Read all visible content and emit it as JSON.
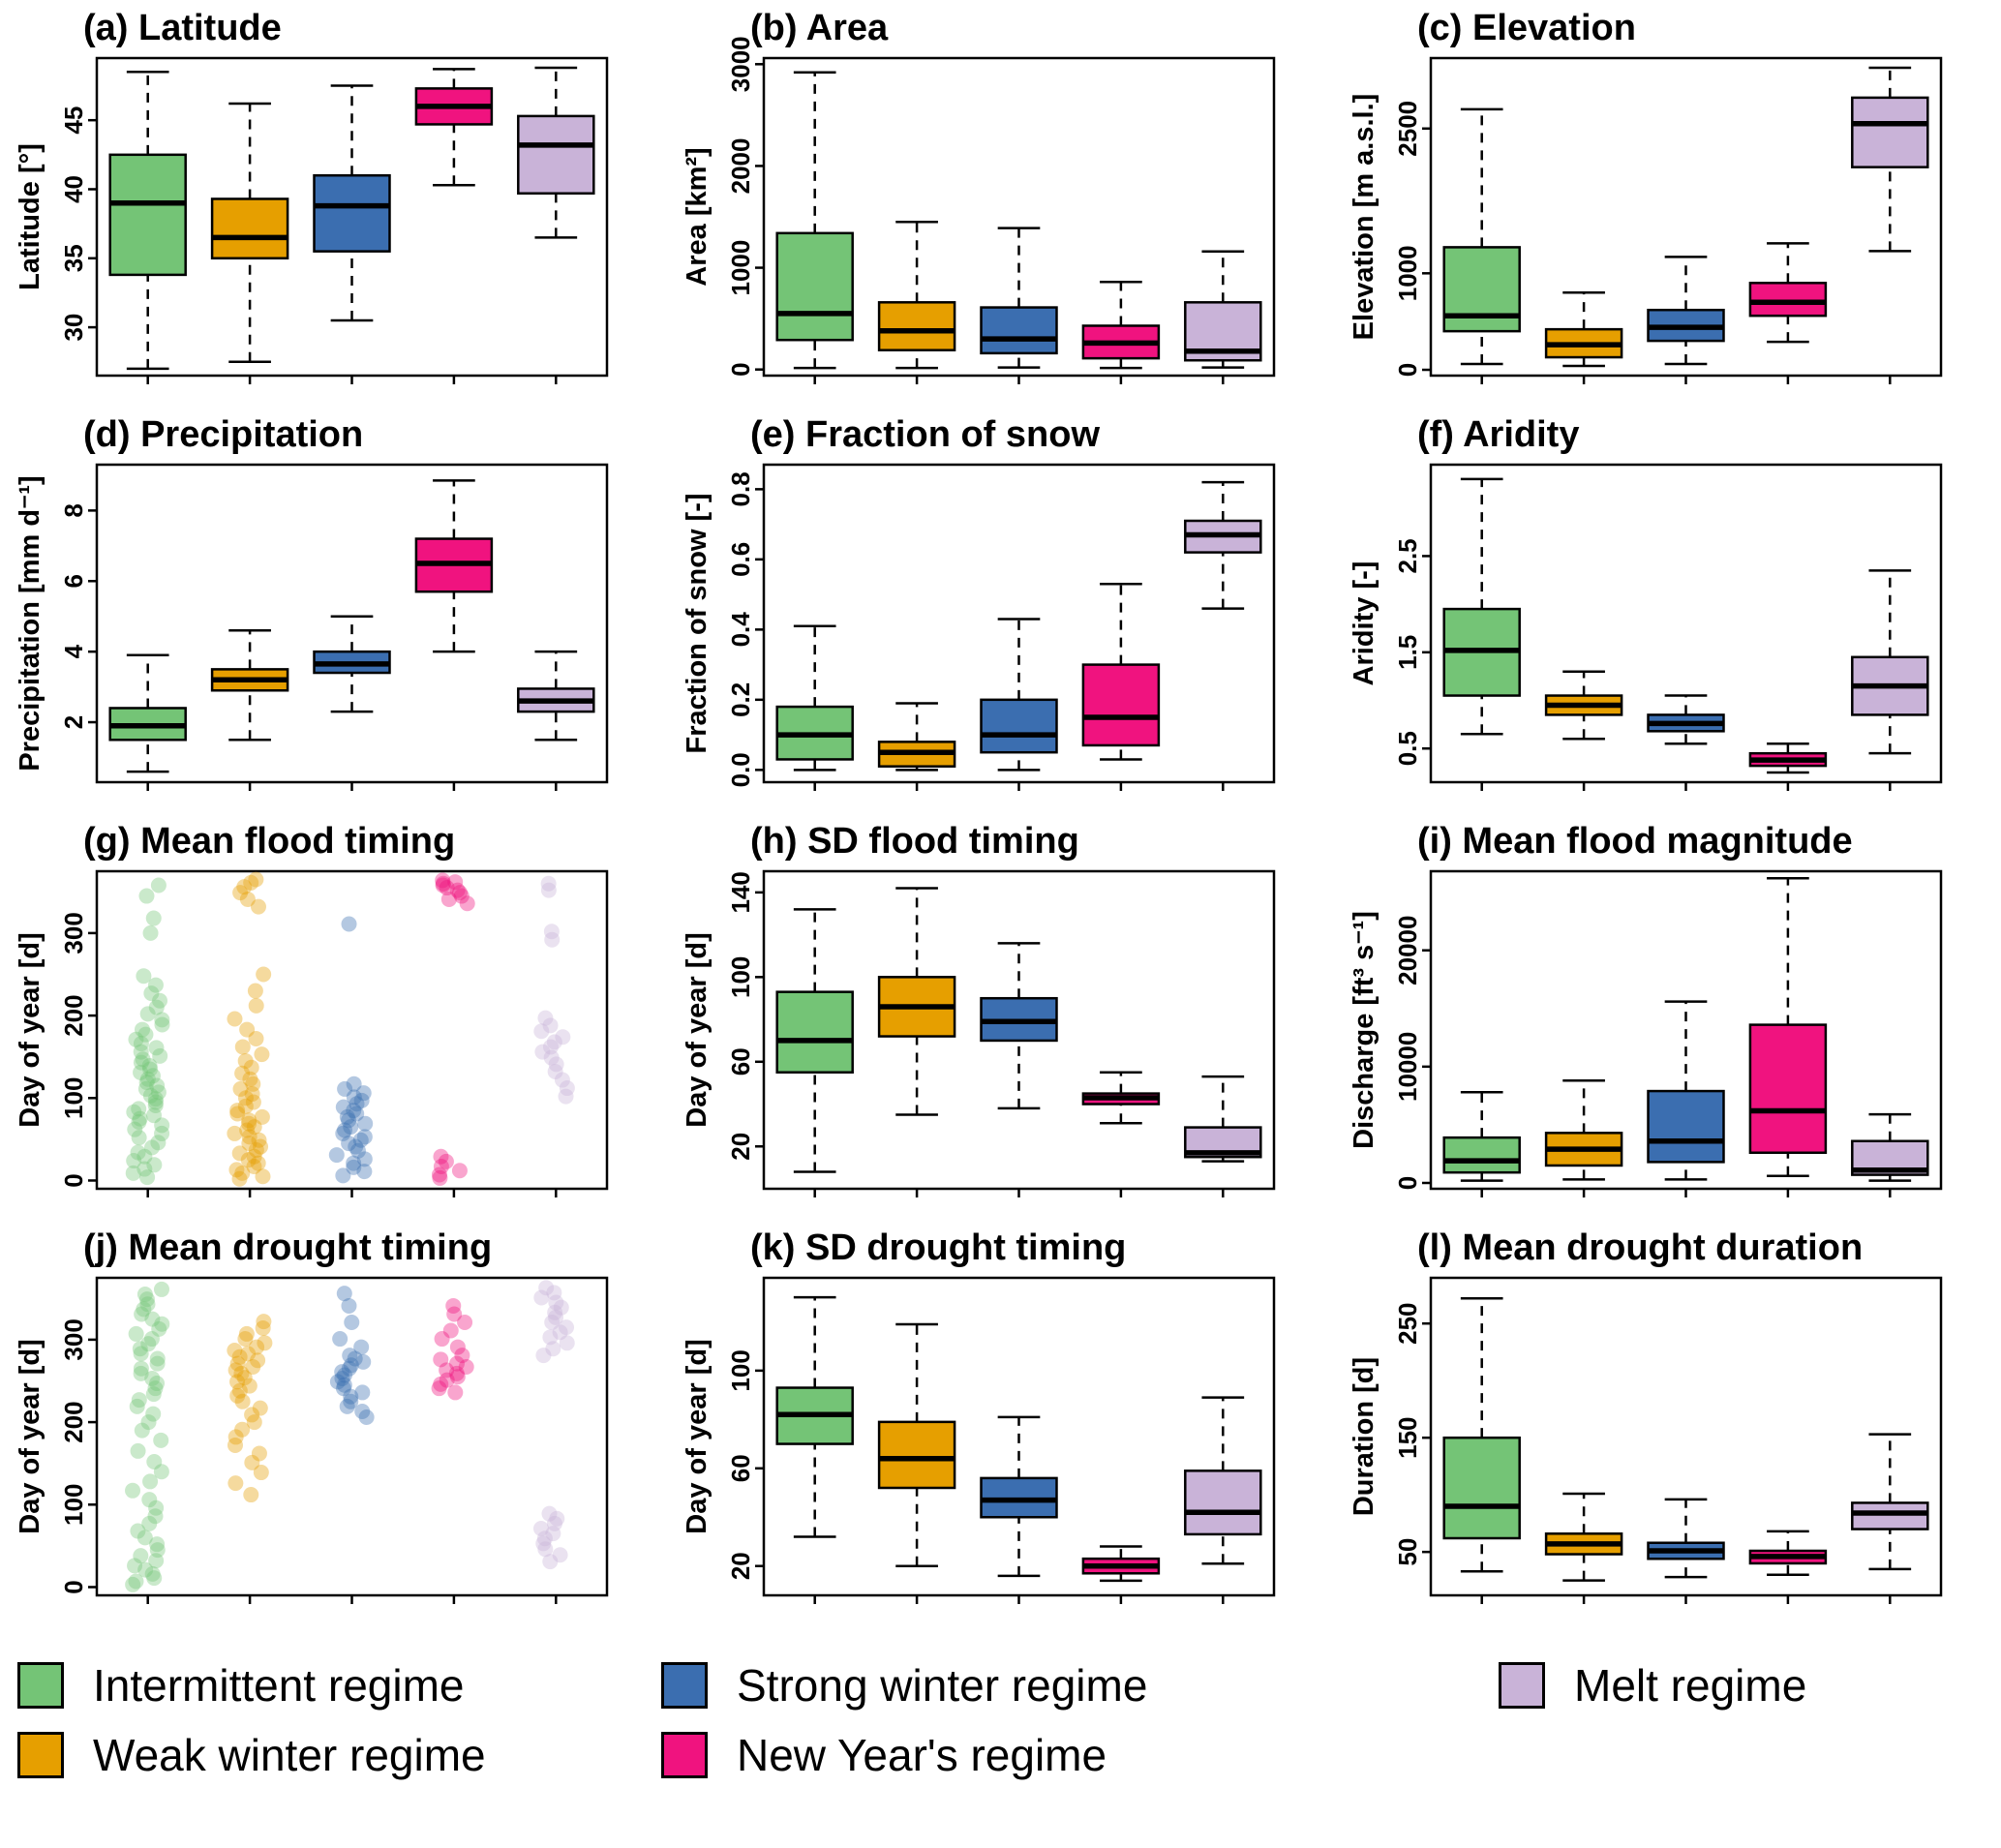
{
  "colors": {
    "intermittent": "#74C476",
    "weak_winter": "#E69F00",
    "strong_winter": "#3B6EB0",
    "new_year": "#F0137F",
    "melt": "#C9B3D8",
    "box_stroke": "#000000",
    "median": "#000000",
    "background": "#ffffff"
  },
  "group_order": [
    "intermittent",
    "weak_winter",
    "strong_winter",
    "new_year",
    "melt"
  ],
  "legend": {
    "items": [
      {
        "label": "Intermittent regime",
        "color": "intermittent"
      },
      {
        "label": "Weak winter regime",
        "color": "weak_winter"
      },
      {
        "label": "Strong winter regime",
        "color": "strong_winter"
      },
      {
        "label": "New Year's regime",
        "color": "new_year"
      },
      {
        "label": "Melt regime",
        "color": "melt"
      }
    ]
  },
  "chart_data": [
    {
      "id": "a",
      "type": "box",
      "title": "(a) Latitude",
      "ylabel": "Latitude [°]",
      "ylim": [
        26.5,
        49.5
      ],
      "ytick_vals": [
        30,
        35,
        40,
        45
      ],
      "ytick_labels": [
        "30",
        "35",
        "40",
        "45"
      ],
      "boxes": [
        {
          "low": 27.0,
          "q1": 33.8,
          "median": 39.0,
          "q3": 42.5,
          "high": 48.5
        },
        {
          "low": 27.5,
          "q1": 35.0,
          "median": 36.5,
          "q3": 39.3,
          "high": 46.2
        },
        {
          "low": 30.5,
          "q1": 35.5,
          "median": 38.8,
          "q3": 41.0,
          "high": 47.5
        },
        {
          "low": 40.3,
          "q1": 44.7,
          "median": 46.0,
          "q3": 47.3,
          "high": 48.7
        },
        {
          "low": 36.5,
          "q1": 39.7,
          "median": 43.2,
          "q3": 45.3,
          "high": 48.8
        }
      ]
    },
    {
      "id": "b",
      "type": "box",
      "title": "(b) Area",
      "ylabel": "Area [km²]",
      "ylim": [
        -60,
        3060
      ],
      "ytick_vals": [
        0,
        1000,
        2000,
        3000
      ],
      "ytick_labels": [
        "0",
        "1000",
        "2000",
        "3000"
      ],
      "boxes": [
        {
          "low": 15,
          "q1": 290,
          "median": 550,
          "q3": 1340,
          "high": 2920
        },
        {
          "low": 15,
          "q1": 190,
          "median": 380,
          "q3": 660,
          "high": 1450
        },
        {
          "low": 20,
          "q1": 160,
          "median": 300,
          "q3": 610,
          "high": 1390
        },
        {
          "low": 15,
          "q1": 110,
          "median": 260,
          "q3": 430,
          "high": 860
        },
        {
          "low": 20,
          "q1": 90,
          "median": 180,
          "q3": 660,
          "high": 1160
        }
      ]
    },
    {
      "id": "c",
      "type": "box",
      "title": "(c) Elevation",
      "ylabel": "Elevation [m a.s.l.]",
      "ylim": [
        -60,
        3230
      ],
      "ytick_vals": [
        0,
        1000,
        2500
      ],
      "ytick_labels": [
        "0",
        "1000",
        "2500"
      ],
      "boxes": [
        {
          "low": 60,
          "q1": 400,
          "median": 560,
          "q3": 1270,
          "high": 2700
        },
        {
          "low": 40,
          "q1": 130,
          "median": 260,
          "q3": 420,
          "high": 800
        },
        {
          "low": 60,
          "q1": 300,
          "median": 440,
          "q3": 620,
          "high": 1170
        },
        {
          "low": 290,
          "q1": 560,
          "median": 700,
          "q3": 900,
          "high": 1310
        },
        {
          "low": 1230,
          "q1": 2100,
          "median": 2550,
          "q3": 2820,
          "high": 3130
        }
      ]
    },
    {
      "id": "d",
      "type": "box",
      "title": "(d) Precipitation",
      "ylabel": "Precipitation [mm d⁻¹]",
      "ylim": [
        0.3,
        9.3
      ],
      "ytick_vals": [
        2,
        4,
        6,
        8
      ],
      "ytick_labels": [
        "2",
        "4",
        "6",
        "8"
      ],
      "boxes": [
        {
          "low": 0.6,
          "q1": 1.5,
          "median": 1.9,
          "q3": 2.4,
          "high": 3.9
        },
        {
          "low": 1.5,
          "q1": 2.9,
          "median": 3.2,
          "q3": 3.5,
          "high": 4.6
        },
        {
          "low": 2.3,
          "q1": 3.4,
          "median": 3.65,
          "q3": 4.0,
          "high": 5.0
        },
        {
          "low": 4.0,
          "q1": 5.7,
          "median": 6.5,
          "q3": 7.2,
          "high": 8.85
        },
        {
          "low": 1.5,
          "q1": 2.3,
          "median": 2.6,
          "q3": 2.95,
          "high": 4.0
        }
      ]
    },
    {
      "id": "e",
      "type": "box",
      "title": "(e) Fraction of snow",
      "ylabel": "Fraction of snow [-]",
      "ylim": [
        -0.035,
        0.87
      ],
      "ytick_vals": [
        0.0,
        0.2,
        0.4,
        0.6,
        0.8
      ],
      "ytick_labels": [
        "0.0",
        "0.2",
        "0.4",
        "0.6",
        "0.8"
      ],
      "boxes": [
        {
          "low": 0.0,
          "q1": 0.03,
          "median": 0.1,
          "q3": 0.18,
          "high": 0.41
        },
        {
          "low": 0.0,
          "q1": 0.01,
          "median": 0.05,
          "q3": 0.08,
          "high": 0.19
        },
        {
          "low": 0.0,
          "q1": 0.05,
          "median": 0.1,
          "q3": 0.2,
          "high": 0.43
        },
        {
          "low": 0.03,
          "q1": 0.07,
          "median": 0.15,
          "q3": 0.3,
          "high": 0.53
        },
        {
          "low": 0.46,
          "q1": 0.62,
          "median": 0.67,
          "q3": 0.71,
          "high": 0.82
        }
      ]
    },
    {
      "id": "f",
      "type": "box",
      "title": "(f) Aridity",
      "ylabel": "Aridity [-]",
      "ylim": [
        0.15,
        3.45
      ],
      "ytick_vals": [
        0.5,
        1.5,
        2.5
      ],
      "ytick_labels": [
        "0.5",
        "1.5",
        "2.5"
      ],
      "boxes": [
        {
          "low": 0.65,
          "q1": 1.05,
          "median": 1.52,
          "q3": 1.95,
          "high": 3.3
        },
        {
          "low": 0.6,
          "q1": 0.85,
          "median": 0.95,
          "q3": 1.05,
          "high": 1.3
        },
        {
          "low": 0.55,
          "q1": 0.68,
          "median": 0.76,
          "q3": 0.85,
          "high": 1.05
        },
        {
          "low": 0.25,
          "q1": 0.32,
          "median": 0.38,
          "q3": 0.45,
          "high": 0.55
        },
        {
          "low": 0.45,
          "q1": 0.85,
          "median": 1.15,
          "q3": 1.45,
          "high": 2.35
        }
      ]
    },
    {
      "id": "g",
      "type": "scatter",
      "title": "(g) Mean flood timing",
      "ylabel": "Day of year [d]",
      "ylim": [
        -10,
        375
      ],
      "ytick_vals": [
        0,
        100,
        200,
        300
      ],
      "ytick_labels": [
        "0",
        "100",
        "200",
        "300"
      ],
      "points": [
        [
          4,
          9,
          14,
          19,
          24,
          29,
          34,
          40,
          46,
          52,
          57,
          62,
          67,
          71,
          75,
          79,
          83,
          87,
          91,
          95,
          99,
          103,
          107,
          111,
          115,
          119,
          123,
          127,
          131,
          135,
          139,
          143,
          147,
          151,
          156,
          161,
          166,
          171,
          177,
          183,
          189,
          195,
          202,
          210,
          218,
          227,
          237,
          248,
          300,
          318,
          345,
          358
        ],
        [
          2,
          5,
          9,
          13,
          17,
          21,
          25,
          29,
          33,
          37,
          41,
          45,
          49,
          53,
          57,
          61,
          65,
          69,
          73,
          77,
          81,
          85,
          90,
          95,
          100,
          105,
          111,
          117,
          123,
          130,
          137,
          145,
          153,
          162,
          172,
          183,
          196,
          212,
          230,
          250,
          332,
          341,
          349,
          356,
          361,
          365
        ],
        [
          6,
          11,
          16,
          21,
          26,
          31,
          36,
          41,
          45,
          49,
          53,
          57,
          61,
          65,
          69,
          73,
          77,
          81,
          85,
          89,
          93,
          97,
          101,
          106,
          111,
          117,
          311
        ],
        [
          3,
          7,
          12,
          17,
          23,
          29,
          336,
          341,
          345,
          349,
          352,
          355,
          358,
          360,
          362,
          364
        ],
        [
          102,
          112,
          122,
          132,
          141,
          149,
          156,
          162,
          168,
          174,
          181,
          188,
          197,
          292,
          302,
          352,
          360
        ]
      ]
    },
    {
      "id": "h",
      "type": "box",
      "title": "(h) SD flood timing",
      "ylabel": "Day of year [d]",
      "ylim": [
        0,
        150
      ],
      "ytick_vals": [
        20,
        60,
        100,
        140
      ],
      "ytick_labels": [
        "20",
        "60",
        "100",
        "140"
      ],
      "boxes": [
        {
          "low": 8,
          "q1": 55,
          "median": 70,
          "q3": 93,
          "high": 132
        },
        {
          "low": 35,
          "q1": 72,
          "median": 86,
          "q3": 100,
          "high": 142
        },
        {
          "low": 38,
          "q1": 70,
          "median": 79,
          "q3": 90,
          "high": 116
        },
        {
          "low": 31,
          "q1": 40,
          "median": 43,
          "q3": 45,
          "high": 55
        },
        {
          "low": 13,
          "q1": 15,
          "median": 17,
          "q3": 29,
          "high": 53
        }
      ]
    },
    {
      "id": "i",
      "type": "box",
      "title": "(i) Mean flood magnitude",
      "ylabel": "Discharge [ft³ s⁻¹]",
      "ylim": [
        -500,
        26800
      ],
      "ytick_vals": [
        0,
        10000,
        20000
      ],
      "ytick_labels": [
        "0",
        "10000",
        "20000"
      ],
      "boxes": [
        {
          "low": 200,
          "q1": 900,
          "median": 1900,
          "q3": 3900,
          "high": 7800
        },
        {
          "low": 300,
          "q1": 1500,
          "median": 2900,
          "q3": 4300,
          "high": 8800
        },
        {
          "low": 300,
          "q1": 1800,
          "median": 3600,
          "q3": 7900,
          "high": 15600
        },
        {
          "low": 600,
          "q1": 2600,
          "median": 6200,
          "q3": 13600,
          "high": 26200
        },
        {
          "low": 200,
          "q1": 700,
          "median": 1100,
          "q3": 3600,
          "high": 5900
        }
      ]
    },
    {
      "id": "j",
      "type": "scatter",
      "title": "(j) Mean drought timing",
      "ylabel": "Day of year [d]",
      "ylim": [
        -10,
        375
      ],
      "ytick_vals": [
        0,
        100,
        200,
        300
      ],
      "ytick_labels": [
        "0",
        "100",
        "200",
        "300"
      ],
      "points": [
        [
          3,
          7,
          11,
          16,
          21,
          26,
          32,
          38,
          45,
          52,
          60,
          68,
          77,
          86,
          96,
          106,
          117,
          128,
          140,
          152,
          165,
          178,
          190,
          200,
          210,
          219,
          227,
          234,
          241,
          247,
          253,
          259,
          265,
          271,
          277,
          283,
          289,
          295,
          301,
          307,
          313,
          319,
          325,
          331,
          337,
          343,
          349,
          355,
          361
        ],
        [
          112,
          126,
          139,
          151,
          162,
          172,
          182,
          191,
          200,
          209,
          217,
          225,
          232,
          238,
          244,
          249,
          254,
          259,
          263,
          267,
          271,
          275,
          279,
          283,
          287,
          291,
          296,
          301,
          307,
          314,
          322
        ],
        [
          206,
          213,
          219,
          225,
          231,
          236,
          241,
          245,
          249,
          253,
          257,
          261,
          265,
          269,
          273,
          277,
          281,
          291,
          301,
          321,
          341,
          356
        ],
        [
          236,
          241,
          246,
          251,
          255,
          259,
          263,
          267,
          271,
          276,
          281,
          291,
          301,
          311,
          321,
          331,
          341
        ],
        [
          31,
          39,
          46,
          53,
          59,
          65,
          71,
          77,
          83,
          89,
          281,
          289,
          296,
          303,
          309,
          315,
          321,
          327,
          333,
          339,
          345,
          351,
          357,
          363
        ]
      ]
    },
    {
      "id": "k",
      "type": "box",
      "title": "(k) SD drought timing",
      "ylabel": "Day of year [d]",
      "ylim": [
        8,
        138
      ],
      "ytick_vals": [
        20,
        60,
        100
      ],
      "ytick_labels": [
        "20",
        "60",
        "100"
      ],
      "boxes": [
        {
          "low": 32,
          "q1": 70,
          "median": 82,
          "q3": 93,
          "high": 130
        },
        {
          "low": 20,
          "q1": 52,
          "median": 64,
          "q3": 79,
          "high": 119
        },
        {
          "low": 16,
          "q1": 40,
          "median": 47,
          "q3": 56,
          "high": 81
        },
        {
          "low": 14,
          "q1": 17,
          "median": 20,
          "q3": 23,
          "high": 28
        },
        {
          "low": 21,
          "q1": 33,
          "median": 42,
          "q3": 59,
          "high": 89
        }
      ]
    },
    {
      "id": "l",
      "type": "box",
      "title": "(l) Mean drought duration",
      "ylabel": "Duration [d]",
      "ylim": [
        12,
        290
      ],
      "ytick_vals": [
        50,
        150,
        250
      ],
      "ytick_labels": [
        "50",
        "150",
        "250"
      ],
      "boxes": [
        {
          "low": 33,
          "q1": 62,
          "median": 90,
          "q3": 150,
          "high": 272
        },
        {
          "low": 25,
          "q1": 48,
          "median": 57,
          "q3": 66,
          "high": 101
        },
        {
          "low": 28,
          "q1": 44,
          "median": 51,
          "q3": 58,
          "high": 96
        },
        {
          "low": 30,
          "q1": 40,
          "median": 46,
          "q3": 51,
          "high": 68
        },
        {
          "low": 35,
          "q1": 70,
          "median": 84,
          "q3": 93,
          "high": 153
        }
      ]
    }
  ]
}
